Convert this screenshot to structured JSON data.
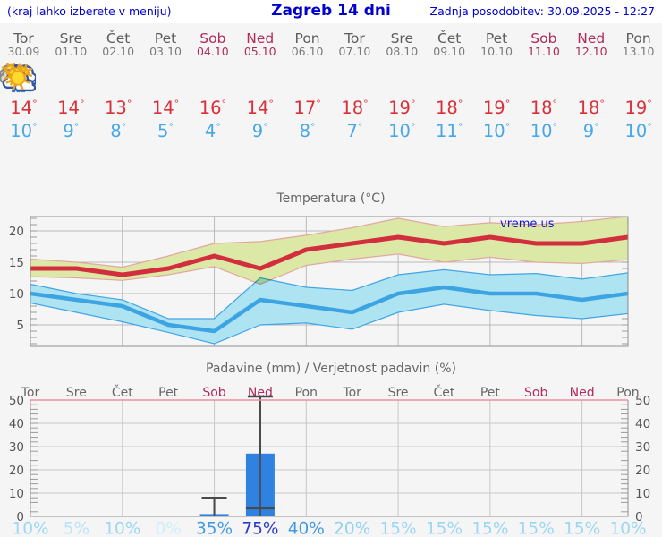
{
  "header": {
    "left": "(kraj lahko izberete v meniju)",
    "title": "Zagreb 14 dni",
    "right": "Zadnja posodobitev: 30.09.2025 - 12:27"
  },
  "days": [
    {
      "name": "Tor",
      "date": "30.09",
      "weekend": false,
      "icon": "cloudy",
      "high": "14",
      "low": "10"
    },
    {
      "name": "Sre",
      "date": "01.10",
      "weekend": false,
      "icon": "partly-cloudy",
      "high": "14",
      "low": "9"
    },
    {
      "name": "Čet",
      "date": "02.10",
      "weekend": false,
      "icon": "partly-cloudy",
      "high": "13",
      "low": "8"
    },
    {
      "name": "Pet",
      "date": "03.10",
      "weekend": false,
      "icon": "sunny",
      "high": "14",
      "low": "5"
    },
    {
      "name": "Sob",
      "date": "04.10",
      "weekend": true,
      "icon": "rain",
      "high": "16",
      "low": "4"
    },
    {
      "name": "Ned",
      "date": "05.10",
      "weekend": true,
      "icon": "sun-rain",
      "high": "14",
      "low": "9"
    },
    {
      "name": "Pon",
      "date": "06.10",
      "weekend": false,
      "icon": "partly-cloudy",
      "high": "17",
      "low": "8"
    },
    {
      "name": "Tor",
      "date": "07.10",
      "weekend": false,
      "icon": "mostly-sunny",
      "high": "18",
      "low": "7"
    },
    {
      "name": "Sre",
      "date": "08.10",
      "weekend": false,
      "icon": "sunny",
      "high": "19",
      "low": "10"
    },
    {
      "name": "Čet",
      "date": "09.10",
      "weekend": false,
      "icon": "sunny",
      "high": "18",
      "low": "11"
    },
    {
      "name": "Pet",
      "date": "10.10",
      "weekend": false,
      "icon": "sunny",
      "high": "19",
      "low": "10"
    },
    {
      "name": "Sob",
      "date": "11.10",
      "weekend": true,
      "icon": "sunny",
      "high": "18",
      "low": "10"
    },
    {
      "name": "Ned",
      "date": "12.10",
      "weekend": true,
      "icon": "sunny",
      "high": "18",
      "low": "9"
    },
    {
      "name": "Pon",
      "date": "13.10",
      "weekend": false,
      "icon": "sunny",
      "high": "19",
      "low": "10"
    }
  ],
  "temp_chart": {
    "title": "Temperatura (°C)",
    "watermark": "vreme.us",
    "yticks": [
      5,
      10,
      15,
      20
    ],
    "ylim": [
      1.6,
      22.3
    ]
  },
  "precip_chart": {
    "title": "Padavine (mm) / Verjetnost padavin (%)",
    "yticks": [
      0,
      10,
      20,
      30,
      40,
      50
    ],
    "ylim": [
      0,
      52
    ]
  },
  "chart_data": [
    {
      "type": "line",
      "title": "Temperatura (°C)",
      "x": [
        "Tor 30.09",
        "Sre 01.10",
        "Čet 02.10",
        "Pet 03.10",
        "Sob 04.10",
        "Ned 05.10",
        "Pon 06.10",
        "Tor 07.10",
        "Sre 08.10",
        "Čet 09.10",
        "Pet 10.10",
        "Sob 11.10",
        "Ned 12.10",
        "Pon 13.10"
      ],
      "ylim": [
        1.6,
        22.3
      ],
      "yticks": [
        5,
        10,
        15,
        20
      ],
      "grid": true,
      "series": [
        {
          "name": "max temperatura",
          "color": "#d22e3e",
          "values": [
            14,
            14,
            13,
            14,
            16,
            14,
            17,
            18,
            19,
            18,
            19,
            18,
            18,
            19
          ]
        },
        {
          "name": "max band upper",
          "color": "#dce9a6",
          "values": [
            15.5,
            15,
            14.2,
            16,
            18,
            18.3,
            19.3,
            20.5,
            22,
            20.7,
            21.3,
            21,
            21.5,
            22.3
          ]
        },
        {
          "name": "max band lower",
          "color": "#dce9a6",
          "values": [
            12.7,
            12.5,
            12.1,
            13,
            14.3,
            11.5,
            14.5,
            15.5,
            16.3,
            15,
            15.8,
            15,
            14.8,
            15.4
          ]
        },
        {
          "name": "min temperatura",
          "color": "#3da4e3",
          "values": [
            10,
            9,
            8,
            5,
            4,
            9,
            8,
            7,
            10,
            11,
            10,
            10,
            9,
            10
          ]
        },
        {
          "name": "min band upper",
          "color": "#aee4f2",
          "values": [
            11.5,
            10,
            9,
            6,
            6,
            12.5,
            11,
            10.5,
            13,
            13.8,
            13,
            13.2,
            12.3,
            13.3
          ]
        },
        {
          "name": "min band lower",
          "color": "#aee4f2",
          "values": [
            8.5,
            7,
            5.5,
            3.8,
            2,
            5,
            5.3,
            4.3,
            7,
            8.3,
            7.3,
            6.5,
            6,
            6.8
          ]
        }
      ]
    },
    {
      "type": "bar",
      "title": "Padavine (mm) / Verjetnost padavin (%)",
      "categories": [
        "Tor",
        "Sre",
        "Čet",
        "Pet",
        "Sob",
        "Ned",
        "Pon",
        "Tor",
        "Sre",
        "Čet",
        "Pet",
        "Sob",
        "Ned",
        "Pon"
      ],
      "values": [
        0,
        0,
        0,
        0,
        1,
        27,
        0,
        0,
        0,
        0,
        0,
        0,
        0,
        0
      ],
      "whiskers": [
        null,
        null,
        null,
        null,
        [
          0,
          8
        ],
        [
          3.5,
          52
        ],
        null,
        null,
        null,
        null,
        null,
        null,
        null,
        null
      ],
      "probability_percent": [
        10,
        5,
        10,
        0,
        35,
        75,
        40,
        20,
        15,
        15,
        15,
        15,
        15,
        10
      ],
      "ylim": [
        0,
        52
      ],
      "yticks": [
        0,
        10,
        20,
        30,
        40,
        50
      ],
      "ylabel": "mm",
      "grid": true
    }
  ],
  "probability": [
    {
      "label": "10%",
      "color": "#9bd7f1"
    },
    {
      "label": "5%",
      "color": "#b9e4f7"
    },
    {
      "label": "10%",
      "color": "#9bd7f1"
    },
    {
      "label": "0%",
      "color": "#cdeffa"
    },
    {
      "label": "35%",
      "color": "#429ae2"
    },
    {
      "label": "75%",
      "color": "#2a38c8"
    },
    {
      "label": "40%",
      "color": "#429ae2"
    },
    {
      "label": "20%",
      "color": "#8fd2ef"
    },
    {
      "label": "15%",
      "color": "#9bd7f1"
    },
    {
      "label": "15%",
      "color": "#9bd7f1"
    },
    {
      "label": "15%",
      "color": "#9bd7f1"
    },
    {
      "label": "15%",
      "color": "#9bd7f1"
    },
    {
      "label": "15%",
      "color": "#9bd7f1"
    },
    {
      "label": "10%",
      "color": "#9bd7f1"
    }
  ],
  "colors": {
    "header_text": "#0000cc",
    "weekend": "#b12a59",
    "weekday": "#5c5c5c",
    "high_temp": "#d93038",
    "low_temp": "#47a7e9",
    "max_line": "#d22e3e",
    "max_band": "#dce9a6",
    "min_line": "#3da4e3",
    "min_band": "#aee4f2",
    "bar_fill": "#2f82e0",
    "whisker": "#4a4a4a",
    "grid": "#b9b9b9",
    "border": "#909090",
    "precip_top_border": "#ef8fa4",
    "axis_text": "#555555"
  }
}
